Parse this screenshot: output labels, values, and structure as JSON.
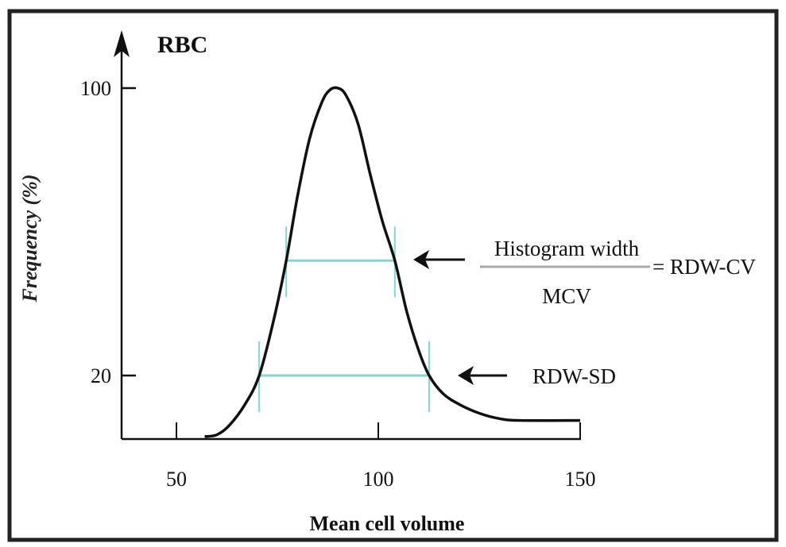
{
  "chart_data": {
    "type": "line",
    "title": "RBC",
    "xlabel": "Mean cell volume",
    "ylabel": "Frequency (%)",
    "xticks": [
      "50",
      "100",
      "150"
    ],
    "xtick_values": [
      50,
      100,
      150
    ],
    "yticks": [
      "20",
      "100"
    ],
    "ytick_values": [
      20,
      100
    ],
    "xlim": [
      36,
      150
    ],
    "ylim": [
      2,
      110
    ],
    "grid": false,
    "series": [
      {
        "x": [
          57,
          60,
          63,
          67,
          70.5,
          74,
          77.2,
          80,
          83,
          86,
          88,
          90,
          92,
          95,
          98,
          101,
          104.1,
          107,
          110,
          112.6,
          116,
          120,
          125,
          130,
          135,
          150
        ],
        "y": [
          3,
          3.5,
          6,
          12,
          20,
          35,
          52,
          70,
          86,
          96,
          99.5,
          100,
          98,
          90,
          76,
          63,
          52,
          38,
          27,
          20,
          15,
          12,
          9.5,
          8,
          7.5,
          7.5
        ]
      }
    ],
    "widths": [
      {
        "name": "RDW-CV",
        "y": 52,
        "x_start": 77.2,
        "x_end": 104.1
      },
      {
        "name": "RDW-SD",
        "y": 20,
        "x_start": 70.5,
        "x_end": 112.6
      }
    ],
    "annotations": {
      "numerator": "Histogram width",
      "denominator": "MCV",
      "rdw_cv": "= RDW-CV",
      "rdw_sd": "RDW-SD"
    },
    "colors": {
      "curve": "#111111",
      "width_lines": "#7fd9d2",
      "frame": "#222222"
    }
  }
}
